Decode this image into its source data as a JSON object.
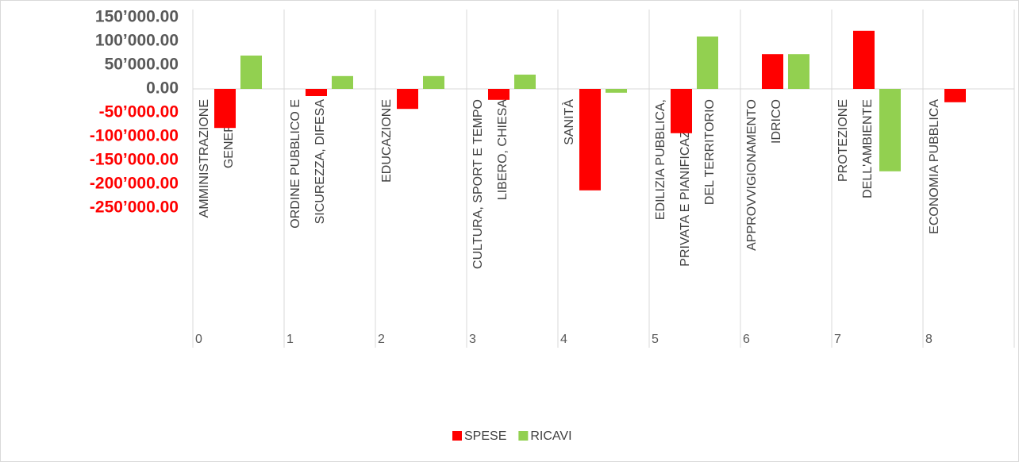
{
  "chart_data": {
    "type": "bar",
    "categories": [
      [
        "AMMINISTRAZIONE",
        "GENERALE"
      ],
      [
        "ORDINE PUBBLICO E",
        "SICUREZZA, DIFESA"
      ],
      [
        "EDUCAZIONE"
      ],
      [
        "CULTURA, SPORT E TEMPO",
        "LIBERO, CHIESA"
      ],
      [
        "SANITÀ"
      ],
      [
        "EDILIZIA PUBBLICA,",
        "PRIVATA E PIANIFICAZIONE",
        "DEL TERRITORIO"
      ],
      [
        "APPROVVIGIONAMENTO",
        "IDRICO"
      ],
      [
        "PROTEZIONE",
        "DELL'AMBIENTE"
      ],
      [
        "ECONOMIA PUBBLICA"
      ]
    ],
    "category_numbers": [
      0,
      1,
      2,
      3,
      4,
      5,
      6,
      7,
      8
    ],
    "series": [
      {
        "name": "SPESE",
        "color": "#ff0000",
        "values": [
          -82000,
          -15000,
          -42000,
          -23000,
          -213000,
          -93000,
          73000,
          122000,
          -28000
        ]
      },
      {
        "name": "RICAVI",
        "color": "#92d050",
        "values": [
          70000,
          27000,
          27000,
          30000,
          -8000,
          110000,
          73000,
          -173000,
          null
        ]
      }
    ],
    "ylim": [
      -250000,
      150000
    ],
    "yticks": [
      {
        "value": -250000,
        "label": "-250’000.00"
      },
      {
        "value": -200000,
        "label": "-200’000.00"
      },
      {
        "value": -150000,
        "label": "-150’000.00"
      },
      {
        "value": -100000,
        "label": "-100’000.00"
      },
      {
        "value": -50000,
        "label": "-50’000.00"
      },
      {
        "value": 0,
        "label": "0.00"
      },
      {
        "value": 50000,
        "label": "50’000.00"
      },
      {
        "value": 100000,
        "label": "100’000.00"
      },
      {
        "value": 150000,
        "label": "150’000.00"
      }
    ],
    "tick_color": "#595959",
    "negative_tick_color": "#ff0000",
    "legend": "bottom"
  }
}
